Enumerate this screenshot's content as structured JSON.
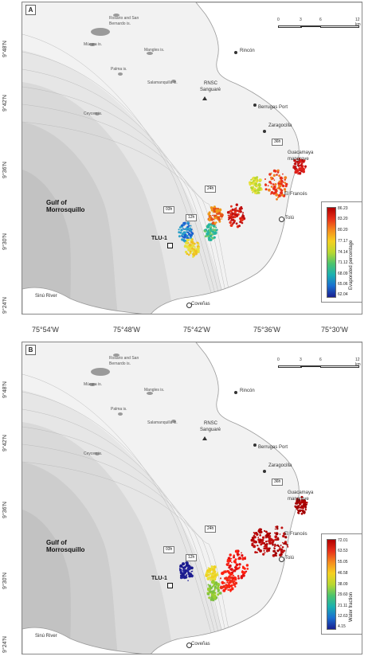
{
  "panels": [
    {
      "letter": "A",
      "scale": [
        "0",
        "3",
        "6",
        "12"
      ],
      "scale_unit": "km",
      "legend_title": "Evaporated percentage",
      "legend_ticks": [
        "86.23",
        "83.20",
        "80.20",
        "77.17",
        "74.14",
        "71.12",
        "68.09",
        "65.06",
        "62.04"
      ],
      "legend_colors": [
        "#b10000",
        "#1a2090"
      ]
    },
    {
      "letter": "B",
      "scale": [
        "0",
        "3",
        "6",
        "12"
      ],
      "scale_unit": "km",
      "legend_title": "Water fraction",
      "legend_ticks": [
        "72.01",
        "63.53",
        "55.05",
        "46.58",
        "38.09",
        "29.60",
        "21.11",
        "12.63",
        "4.15"
      ],
      "legend_colors": [
        "#b10000",
        "#1a2090"
      ]
    }
  ],
  "places": {
    "rosario": "Rosario and San",
    "rosario2": "Bernardo is.",
    "mucura": "Múcura is.",
    "mangles": "Mangles is.",
    "palma": "Palma is.",
    "salamanquilla": "Salamanquilla is.",
    "rnsc": "RNSC",
    "sanguare": "Sanguaré",
    "ceycen": "Ceycen is.",
    "rincon": "Rincón",
    "berrugas": "Berrugas Port",
    "zaragocilla": "Zaragocilla",
    "guacamaya": "Guacamaya",
    "mangrove": "mangrove",
    "elfrances": "El Francés",
    "tolu": "Tolú",
    "gulf1": "Gulf of",
    "gulf2": "Morrosquillo",
    "tlu": "TLU-1",
    "sinu": "Sinú River",
    "covenas": "Coveñas"
  },
  "time_tags": [
    "36h",
    "24h",
    "12h",
    "03h"
  ],
  "y_ticks": [
    "9°48'N",
    "9°42'N",
    "9°36'N",
    "9°30'N",
    "9°24'N"
  ],
  "x_ticks": [
    "75°54'W",
    "75°48'W",
    "75°42'W",
    "75°36'W",
    "75°30'W"
  ]
}
